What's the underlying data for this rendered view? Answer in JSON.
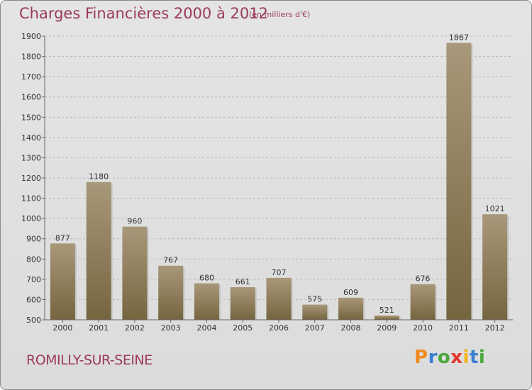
{
  "chart_data": {
    "type": "bar",
    "title": "Charges Financières 2000 à 2012",
    "subtitle": "(en milliers d'€)",
    "categories": [
      "2000",
      "2001",
      "2002",
      "2003",
      "2004",
      "2005",
      "2006",
      "2007",
      "2008",
      "2009",
      "2010",
      "2011",
      "2012"
    ],
    "values": [
      877,
      1180,
      960,
      767,
      680,
      661,
      707,
      575,
      609,
      521,
      676,
      1867,
      1021
    ],
    "ylim": [
      500,
      1900
    ],
    "yticks": [
      500,
      600,
      700,
      800,
      900,
      1000,
      1100,
      1200,
      1300,
      1400,
      1500,
      1600,
      1700,
      1800,
      1900
    ],
    "xlabel": "",
    "ylabel": "",
    "grid": "horizontal dashed",
    "bar_color_top": "#a8987a",
    "bar_color_bottom": "#75653f"
  },
  "footer": {
    "location": "ROMILLY-SUR-SEINE",
    "logo_letters": [
      "P",
      "r",
      "o",
      "x",
      "i",
      "t",
      "i"
    ],
    "logo_colors": [
      "#f28a1f",
      "#3a7fd0",
      "#4aa83a",
      "#e4352b",
      "#f2b41f",
      "#3a7fd0",
      "#4aa83a"
    ]
  },
  "colors": {
    "title": "#9b3a5c",
    "frame_background": "#e0e0e0"
  }
}
